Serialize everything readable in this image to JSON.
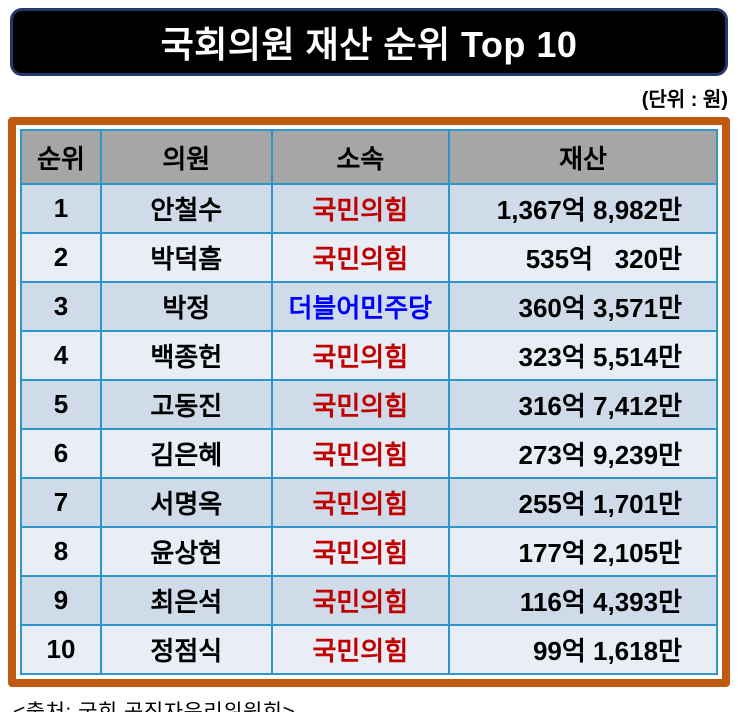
{
  "title": "국회의원 재산 순위 Top 10",
  "unit_label": "(단위 : 원)",
  "source": "<출처: 국회 공직자윤리위원회>",
  "colors": {
    "title_bg": "#000000",
    "title_border": "#24386b",
    "title_text": "#ffffff",
    "table_outer_border": "#c05a11",
    "cell_border": "#2e96c8",
    "header_bg": "#a6a6a6",
    "row_dark_bg": "#cfdbe9",
    "row_light_bg": "#e9eef6",
    "party_ppp_text": "#c00000",
    "party_dp_text": "#0000ff"
  },
  "table": {
    "headers": [
      "순위",
      "의원",
      "소속",
      "재산"
    ],
    "rows": [
      {
        "rank": "1",
        "name": "안철수",
        "party": "국민의힘",
        "party_color": "#c00000",
        "assets": "1,367억 8,982만"
      },
      {
        "rank": "2",
        "name": "박덕흠",
        "party": "국민의힘",
        "party_color": "#c00000",
        "assets": "535억   320만"
      },
      {
        "rank": "3",
        "name": "박정",
        "party": "더블어민주당",
        "party_color": "#0000ff",
        "assets": "360억 3,571만"
      },
      {
        "rank": "4",
        "name": "백종헌",
        "party": "국민의힘",
        "party_color": "#c00000",
        "assets": "323억 5,514만"
      },
      {
        "rank": "5",
        "name": "고동진",
        "party": "국민의힘",
        "party_color": "#c00000",
        "assets": "316억 7,412만"
      },
      {
        "rank": "6",
        "name": "김은혜",
        "party": "국민의힘",
        "party_color": "#c00000",
        "assets": "273억 9,239만"
      },
      {
        "rank": "7",
        "name": "서명옥",
        "party": "국민의힘",
        "party_color": "#c00000",
        "assets": "255억 1,701만"
      },
      {
        "rank": "8",
        "name": "윤상현",
        "party": "국민의힘",
        "party_color": "#c00000",
        "assets": "177억 2,105만"
      },
      {
        "rank": "9",
        "name": "최은석",
        "party": "국민의힘",
        "party_color": "#c00000",
        "assets": "116억 4,393만"
      },
      {
        "rank": "10",
        "name": "정점식",
        "party": "국민의힘",
        "party_color": "#c00000",
        "assets": "99억 1,618만"
      }
    ]
  },
  "chart_data": {
    "type": "table",
    "title": "국회의원 재산 순위 Top 10",
    "unit": "원",
    "source": "<출처: 국회 공직자윤리위원회>",
    "columns": [
      "순위",
      "의원",
      "소속",
      "재산"
    ],
    "rows": [
      [
        "1",
        "안철수",
        "국민의힘",
        "1,367억 8,982만"
      ],
      [
        "2",
        "박덕흠",
        "국민의힘",
        "535억 320만"
      ],
      [
        "3",
        "박정",
        "더블어민주당",
        "360억 3,571만"
      ],
      [
        "4",
        "백종헌",
        "국민의힘",
        "323억 5,514만"
      ],
      [
        "5",
        "고동진",
        "국민의힘",
        "316억 7,412만"
      ],
      [
        "6",
        "김은혜",
        "국민의힘",
        "273억 9,239만"
      ],
      [
        "7",
        "서명옥",
        "국민의힘",
        "255억 1,701만"
      ],
      [
        "8",
        "윤상현",
        "국민의힘",
        "177억 2,105만"
      ],
      [
        "9",
        "최은석",
        "국민의힘",
        "116억 4,393만"
      ],
      [
        "10",
        "정점식",
        "국민의힘",
        "99억 1,618만"
      ]
    ]
  }
}
